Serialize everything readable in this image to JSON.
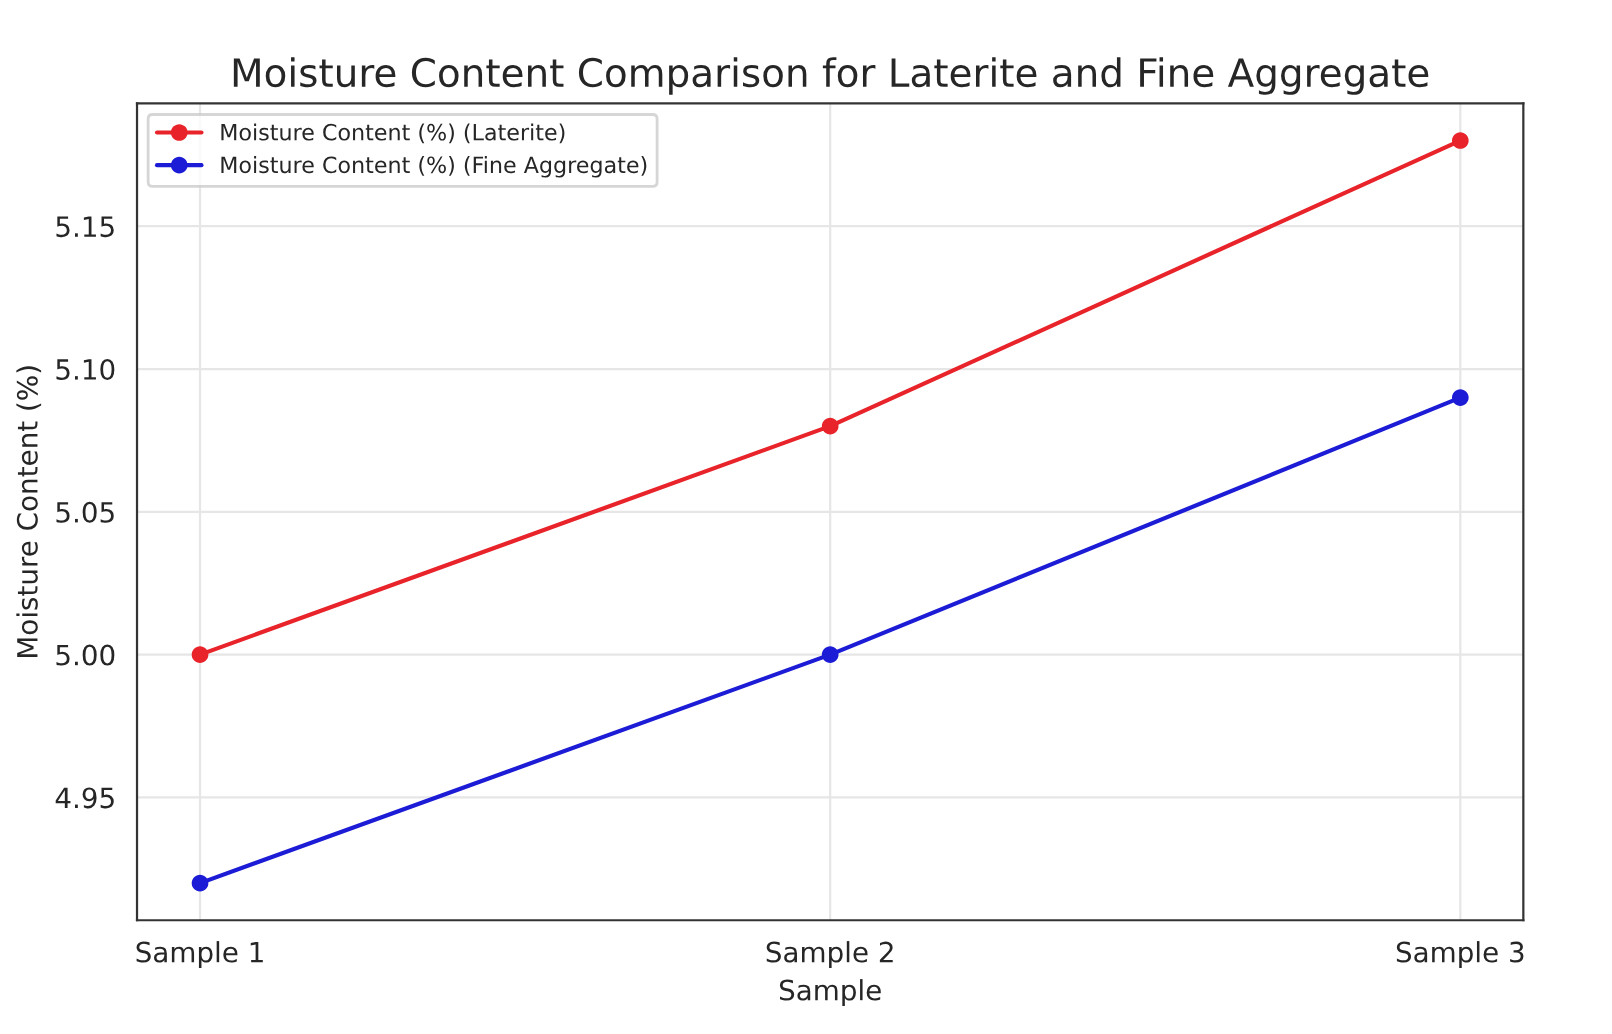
{
  "chart_data": {
    "type": "line",
    "title": "Moisture Content Comparison for Laterite and Fine Aggregate",
    "xlabel": "Sample",
    "ylabel": "Moisture Content (%)",
    "categories": [
      "Sample 1",
      "Sample 2",
      "Sample 3"
    ],
    "series": [
      {
        "name": "Moisture Content (%) (Laterite)",
        "color": "#e8232a",
        "values": [
          5.0,
          5.08,
          5.18
        ]
      },
      {
        "name": "Moisture Content (%) (Fine Aggregate)",
        "color": "#1c1cd6",
        "values": [
          4.92,
          5.0,
          5.09
        ]
      }
    ],
    "ylim": [
      4.907,
      5.193
    ],
    "yticks": [
      {
        "value": 4.95,
        "label": "4.95"
      },
      {
        "value": 5.0,
        "label": "5.00"
      },
      {
        "value": 5.05,
        "label": "5.05"
      },
      {
        "value": 5.1,
        "label": "5.10"
      },
      {
        "value": 5.15,
        "label": "5.15"
      }
    ],
    "grid": true,
    "legend": "top left",
    "marker": "circle",
    "line_style": "solid"
  }
}
